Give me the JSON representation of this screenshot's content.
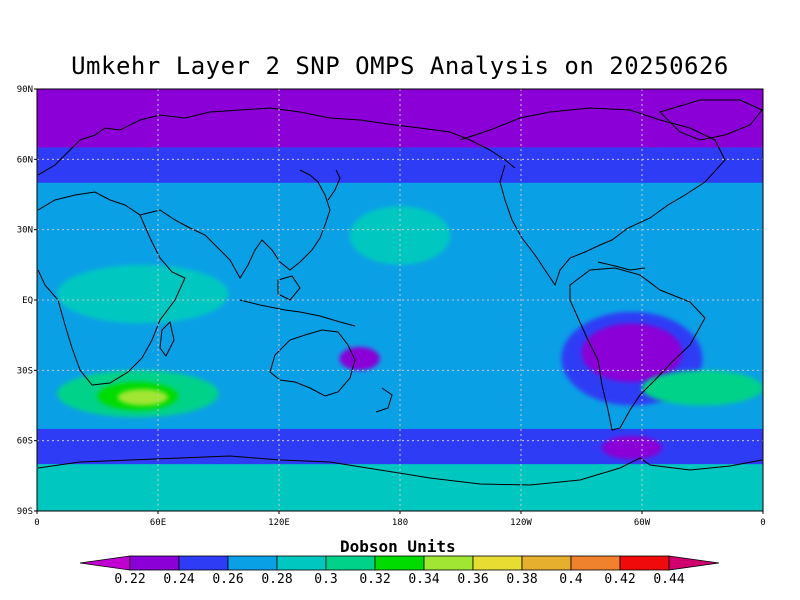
{
  "title": "Umkehr Layer 2 SNP OMPS Analysis on 20250626",
  "colorbar": {
    "title": "Dobson Units",
    "labels": [
      "0.22",
      "0.24",
      "0.26",
      "0.28",
      "0.3",
      "0.32",
      "0.34",
      "0.36",
      "0.38",
      "0.4",
      "0.42",
      "0.44"
    ],
    "colors": [
      "#c000d0",
      "#8a00d6",
      "#2f3cf5",
      "#0aa0e6",
      "#00c8c0",
      "#00d28a",
      "#00dc00",
      "#a0e632",
      "#e6dc32",
      "#e6af2d",
      "#f0822d",
      "#f00a0a",
      "#d0006e"
    ]
  },
  "axes": {
    "y_ticks": [
      "90N",
      "60N",
      "30N",
      "EQ",
      "30S",
      "60S",
      "90S"
    ],
    "x_ticks": [
      "0",
      "60E",
      "120E",
      "180",
      "120W",
      "60W",
      "0"
    ]
  },
  "chart_data": {
    "type": "heatmap",
    "title": "Umkehr Layer 2 SNP OMPS Analysis on 20250626",
    "units": "Dobson Units",
    "x_range": [
      0,
      360
    ],
    "y_range": [
      -90,
      90
    ],
    "x_ticks": [
      "0",
      "60E",
      "120E",
      "180",
      "120W",
      "60W",
      "0"
    ],
    "y_ticks": [
      "90N",
      "60N",
      "30N",
      "EQ",
      "30S",
      "60S",
      "90S"
    ],
    "levels": [
      0.22,
      0.24,
      0.26,
      0.28,
      0.3,
      0.32,
      0.34,
      0.36,
      0.38,
      0.4,
      0.42,
      0.44
    ],
    "grid": true,
    "base_level_range": [
      0.26,
      0.28
    ],
    "features": [
      {
        "lon_range": [
          0,
          360
        ],
        "lat_range": [
          65,
          90
        ],
        "level_range": [
          0.22,
          0.24
        ]
      },
      {
        "lon_range": [
          0,
          360
        ],
        "lat_range": [
          50,
          65
        ],
        "level_range": [
          0.24,
          0.26
        ]
      },
      {
        "lon_range": [
          0,
          360
        ],
        "lat_range": [
          -90,
          -70
        ],
        "level_range": [
          0.28,
          0.3
        ]
      },
      {
        "lon_range": [
          0,
          360
        ],
        "lat_range": [
          -70,
          -55
        ],
        "level_range": [
          0.24,
          0.26
        ]
      },
      {
        "lon_range": [
          10,
          95
        ],
        "lat_range": [
          -10,
          15
        ],
        "level_range": [
          0.28,
          0.3
        ]
      },
      {
        "lon_range": [
          10,
          90
        ],
        "lat_range": [
          -50,
          -30
        ],
        "level_range": [
          0.3,
          0.32
        ]
      },
      {
        "lon_range": [
          30,
          70
        ],
        "lat_range": [
          -47,
          -35
        ],
        "level_range": [
          0.32,
          0.34
        ]
      },
      {
        "lon_range": [
          40,
          65
        ],
        "lat_range": [
          -45,
          -38
        ],
        "level_range": [
          0.34,
          0.36
        ]
      },
      {
        "lon_range": [
          155,
          205
        ],
        "lat_range": [
          15,
          40
        ],
        "level_range": [
          0.28,
          0.3
        ]
      },
      {
        "lon_range": [
          260,
          330
        ],
        "lat_range": [
          -45,
          -5
        ],
        "level_range": [
          0.24,
          0.26
        ]
      },
      {
        "lon_range": [
          270,
          320
        ],
        "lat_range": [
          -35,
          -10
        ],
        "level_range": [
          0.22,
          0.24
        ]
      },
      {
        "lon_range": [
          280,
          310
        ],
        "lat_range": [
          -68,
          -58
        ],
        "level_range": [
          0.22,
          0.24
        ]
      },
      {
        "lon_range": [
          150,
          170
        ],
        "lat_range": [
          -30,
          -20
        ],
        "level_range": [
          0.22,
          0.24
        ]
      },
      {
        "lon_range": [
          300,
          360
        ],
        "lat_range": [
          -45,
          -30
        ],
        "level_range": [
          0.3,
          0.32
        ]
      }
    ]
  }
}
